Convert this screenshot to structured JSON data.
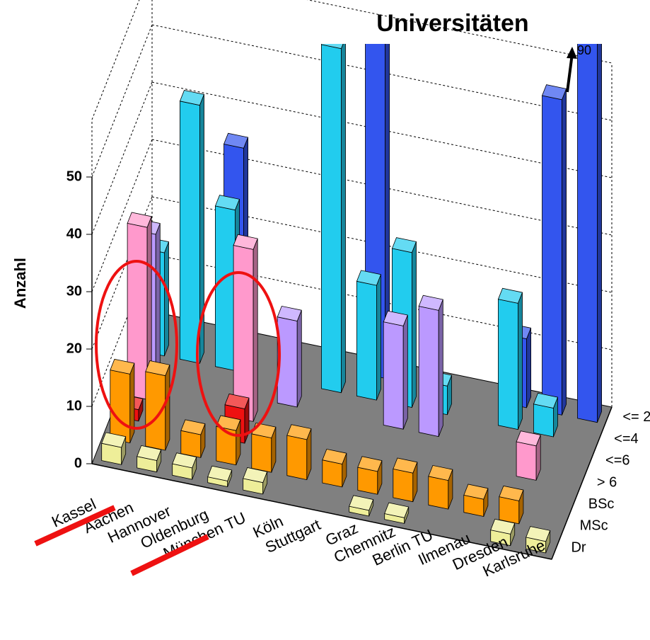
{
  "chart_data": {
    "type": "bar3d",
    "title": "Universitäten",
    "y_label": "Anzahl",
    "annotation": "90",
    "categories": [
      "Kassel",
      "Aachen",
      "Hannover",
      "Oldenburg",
      "München TU",
      "Köln",
      "Stuttgart",
      "Graz",
      "Chemnitz",
      "Berlin TU",
      "Ilmenau",
      "Dresden",
      "Karlsruhe"
    ],
    "series": [
      {
        "name": "<= 2",
        "color": "#3355ee",
        "values": [
          null,
          null,
          35,
          null,
          null,
          null,
          62,
          null,
          null,
          null,
          12,
          55,
          90
        ]
      },
      {
        "name": "<=4",
        "color": "#22ccee",
        "values": [
          18,
          45,
          28,
          null,
          null,
          60,
          20,
          27,
          5,
          null,
          22,
          5,
          null
        ]
      },
      {
        "name": "<=6",
        "color": "#bb99ff",
        "values": [
          25,
          null,
          null,
          null,
          15,
          null,
          null,
          18,
          22,
          null,
          null,
          null,
          null
        ]
      },
      {
        "name": "> 6",
        "color": "#ff99cc",
        "values": [
          30,
          null,
          null,
          30,
          null,
          null,
          null,
          null,
          null,
          null,
          null,
          6,
          null
        ]
      },
      {
        "name": "BSc",
        "color": "#ee1111",
        "values": [
          2,
          null,
          null,
          6,
          null,
          null,
          null,
          null,
          null,
          null,
          null,
          null,
          null
        ]
      },
      {
        "name": "MSc",
        "color": "#ff9900",
        "values": [
          12,
          13,
          4,
          6,
          6,
          7,
          4,
          4,
          5,
          5,
          3,
          4,
          null
        ]
      },
      {
        "name": "Dr",
        "color": "#eeee99",
        "values": [
          3,
          2,
          2,
          1,
          2,
          null,
          null,
          1,
          1,
          null,
          null,
          2,
          2
        ]
      }
    ],
    "ylim": [
      0,
      60
    ],
    "yticks": [
      0,
      10,
      20,
      30,
      40,
      50
    ],
    "grid": true
  }
}
